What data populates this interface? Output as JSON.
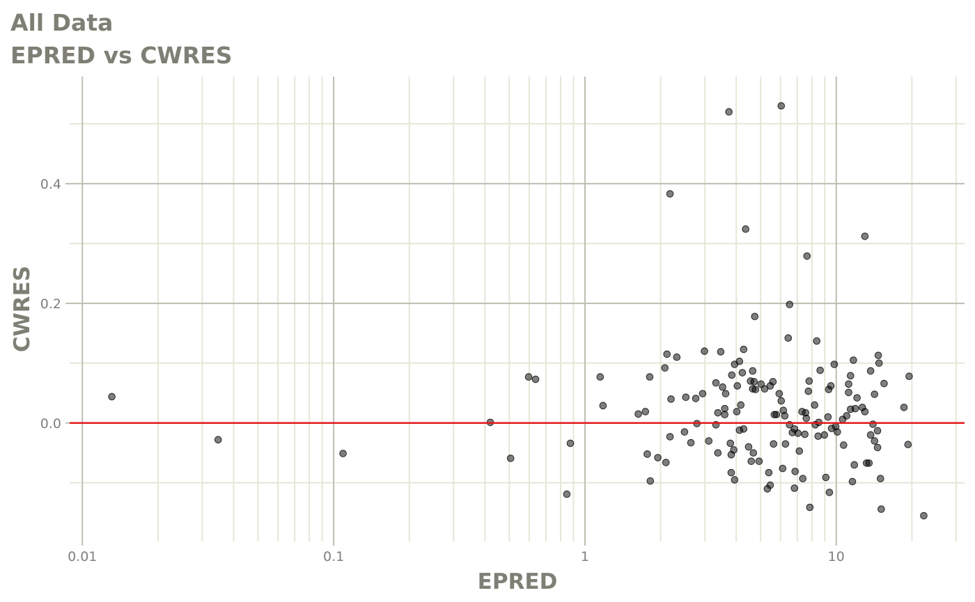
{
  "chart_data": {
    "type": "scatter",
    "title": "All Data",
    "subtitle": "EPRED vs CWRES",
    "x_label": "EPRED",
    "y_label": "CWRES",
    "xscale": "log",
    "color": "#000000",
    "point_opacity": 0.5,
    "xlim": [
      0.0089,
      32.4
    ],
    "ylim": [
      -0.198,
      0.579
    ],
    "xticks": [
      0.01,
      0.1,
      1,
      10
    ],
    "yticks": [
      {
        "value": 0,
        "label": "0.0"
      },
      0.2,
      0.4
    ],
    "x_minor_grid": [
      0.02,
      0.03,
      0.04,
      0.05,
      0.06,
      0.07,
      0.08,
      0.09,
      0.2,
      0.3,
      0.4,
      0.5,
      0.6,
      0.7,
      0.8,
      0.9,
      2,
      3,
      4,
      5,
      6,
      7,
      8,
      9,
      20,
      30
    ],
    "y_minor_grid": [
      -0.1,
      0.1,
      0.3,
      0.5
    ],
    "grid": true,
    "reference_line": {
      "value": 0,
      "color": "#e41a1c"
    },
    "x": [
      0.0131,
      0.0347,
      0.109,
      0.42,
      0.506,
      0.597,
      0.636,
      0.847,
      0.875,
      1.15,
      1.18,
      1.63,
      1.74,
      1.77,
      1.81,
      1.82,
      1.95,
      2.08,
      2.1,
      2.12,
      2.18,
      2.18,
      2.2,
      2.32,
      2.49,
      2.52,
      2.64,
      2.76,
      2.79,
      2.94,
      2.99,
      3.11,
      3.32,
      3.32,
      3.38,
      3.38,
      3.47,
      3.53,
      3.6,
      3.6,
      3.63,
      3.74,
      3.79,
      3.82,
      3.82,
      3.84,
      3.94,
      3.91,
      3.94,
      4.02,
      4.04,
      4.12,
      4.12,
      4.17,
      4.23,
      4.28,
      4.28,
      4.36,
      4.48,
      4.56,
      4.59,
      4.65,
      4.65,
      4.68,
      4.71,
      4.74,
      4.77,
      4.93,
      5.02,
      5.19,
      5.32,
      5.39,
      5.46,
      5.46,
      5.6,
      5.63,
      5.67,
      5.78,
      6.04,
      5.93,
      6.04,
      6.12,
      6.16,
      6.28,
      6.24,
      6.44,
      6.52,
      6.52,
      6.69,
      6.82,
      6.82,
      6.86,
      7.04,
      7.13,
      7.31,
      7.36,
      7.5,
      7.55,
      7.6,
      7.65,
      7.75,
      7.8,
      7.85,
      8.2,
      8.25,
      8.36,
      8.47,
      8.52,
      8.63,
      8.97,
      9.09,
      9.27,
      9.33,
      9.39,
      9.52,
      9.58,
      9.82,
      9.95,
      10.1,
      10.6,
      10.7,
      11.0,
      11.2,
      11.2,
      11.4,
      11.4,
      11.6,
      11.7,
      11.8,
      11.9,
      12.1,
      12.7,
      13.0,
      13.0,
      13.2,
      13.5,
      13.7,
      13.7,
      14.0,
      14.2,
      14.2,
      14.6,
      14.6,
      14.7,
      14.8,
      15.0,
      15.1,
      15.5,
      18.6,
      19.3,
      19.5,
      22.3
    ],
    "values": [
      0.044,
      -0.028,
      -0.051,
      0.001,
      -0.059,
      0.077,
      0.073,
      -0.119,
      -0.034,
      0.077,
      0.029,
      0.015,
      0.019,
      -0.052,
      0.077,
      -0.097,
      -0.058,
      0.092,
      -0.066,
      0.115,
      0.383,
      -0.023,
      0.04,
      0.11,
      -0.015,
      0.043,
      -0.033,
      0.041,
      -0.001,
      0.049,
      0.12,
      -0.03,
      0.067,
      -0.003,
      0.017,
      -0.05,
      0.119,
      0.06,
      0.024,
      0.014,
      0.049,
      0.52,
      -0.034,
      -0.053,
      -0.083,
      0.08,
      0.098,
      -0.045,
      -0.095,
      0.019,
      0.062,
      -0.012,
      0.103,
      0.03,
      0.084,
      -0.01,
      0.123,
      0.324,
      -0.04,
      0.07,
      -0.064,
      0.087,
      0.057,
      -0.05,
      0.069,
      0.178,
      0.056,
      -0.064,
      0.065,
      0.057,
      -0.11,
      -0.083,
      -0.104,
      0.062,
      0.069,
      -0.035,
      0.014,
      0.014,
      0.53,
      0.049,
      0.037,
      -0.076,
      0.021,
      -0.035,
      0.012,
      0.142,
      0.198,
      -0.003,
      -0.016,
      -0.109,
      -0.01,
      -0.081,
      -0.017,
      -0.047,
      0.019,
      -0.093,
      -0.019,
      0.017,
      0.008,
      0.279,
      0.053,
      0.07,
      -0.141,
      0.03,
      -0.003,
      0.137,
      -0.022,
      0.001,
      0.088,
      -0.02,
      -0.091,
      0.01,
      0.056,
      -0.116,
      0.062,
      -0.009,
      0.098,
      -0.006,
      -0.015,
      0.006,
      -0.037,
      0.012,
      0.051,
      0.065,
      0.079,
      0.023,
      -0.098,
      0.105,
      -0.07,
      0.024,
      0.042,
      0.026,
      0.312,
      0.019,
      -0.067,
      -0.067,
      -0.02,
      0.087,
      -0.002,
      -0.03,
      0.048,
      -0.013,
      -0.041,
      0.113,
      0.1,
      -0.093,
      -0.144,
      0.066,
      0.026,
      -0.036,
      0.078,
      -0.155
    ]
  }
}
